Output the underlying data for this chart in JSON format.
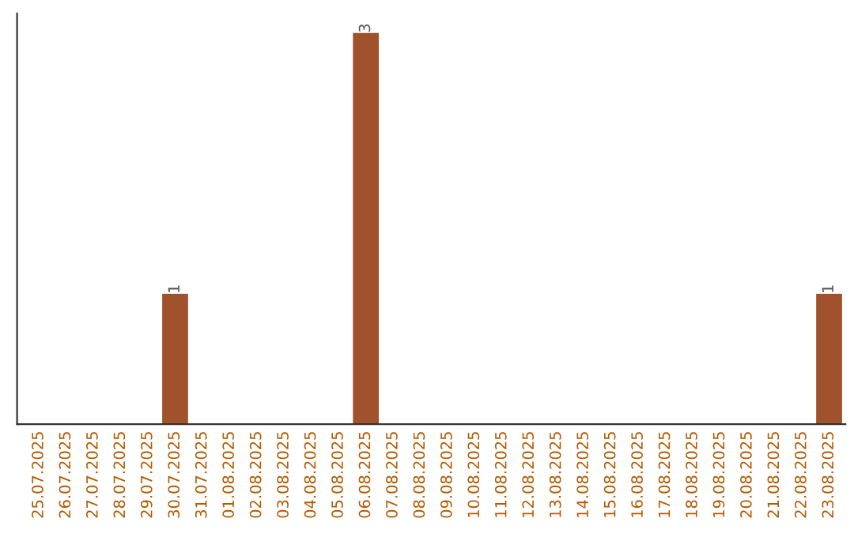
{
  "chart_data": {
    "type": "bar",
    "categories": [
      "25.07.2025",
      "26.07.2025",
      "27.07.2025",
      "28.07.2025",
      "29.07.2025",
      "30.07.2025",
      "31.07.2025",
      "01.08.2025",
      "02.08.2025",
      "03.08.2025",
      "04.08.2025",
      "05.08.2025",
      "06.08.2025",
      "07.08.2025",
      "08.08.2025",
      "09.08.2025",
      "10.08.2025",
      "11.08.2025",
      "12.08.2025",
      "13.08.2025",
      "14.08.2025",
      "15.08.2025",
      "16.08.2025",
      "17.08.2025",
      "18.08.2025",
      "19.08.2025",
      "20.08.2025",
      "21.08.2025",
      "22.08.2025",
      "23.08.2025"
    ],
    "values": [
      0,
      0,
      0,
      0,
      0,
      1,
      0,
      0,
      0,
      0,
      0,
      0,
      3,
      0,
      0,
      0,
      0,
      0,
      0,
      0,
      0,
      0,
      0,
      0,
      0,
      0,
      0,
      0,
      0,
      1
    ],
    "value_labels": [
      null,
      null,
      null,
      null,
      null,
      "1",
      null,
      null,
      null,
      null,
      null,
      null,
      "3",
      null,
      null,
      null,
      null,
      null,
      null,
      null,
      null,
      null,
      null,
      null,
      null,
      null,
      null,
      null,
      null,
      "1"
    ],
    "color": "#a0522d",
    "grid": false,
    "legend": false
  }
}
